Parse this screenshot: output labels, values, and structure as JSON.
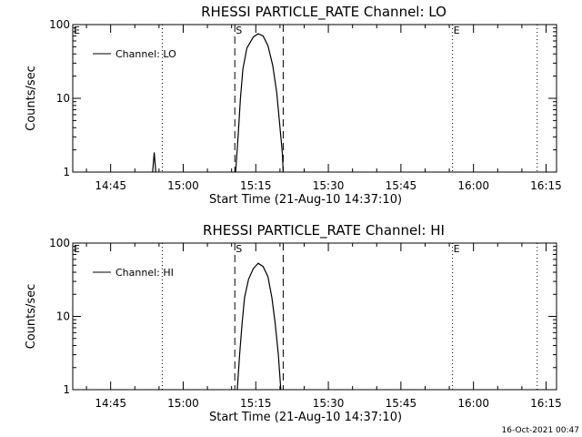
{
  "footer": {
    "timestamp": "16-Oct-2021 00:47"
  },
  "chart_data": [
    {
      "type": "line",
      "title": "RHESSI PARTICLE_RATE Channel: LO",
      "xlabel": "Start Time (21-Aug-10 14:37:10)",
      "ylabel": "Counts/sec",
      "yscale": "log",
      "ylim": [
        1,
        100
      ],
      "xlim": [
        "14:37:10",
        "16:17:10"
      ],
      "x_ticks": [
        "14:45",
        "15:00",
        "15:15",
        "15:30",
        "15:45",
        "16:00",
        "16:15"
      ],
      "y_ticks": [
        "1",
        "10",
        "100"
      ],
      "legend": {
        "position": "top-left",
        "label": "Channel: LO"
      },
      "markers": [
        {
          "label": "E",
          "time": "14:37:10",
          "style": "none"
        },
        {
          "label": "",
          "time": "14:55:40",
          "style": "dotted"
        },
        {
          "label": "S",
          "time": "15:10:40",
          "style": "dashed"
        },
        {
          "label": "",
          "time": "15:20:40",
          "style": "dashed"
        },
        {
          "label": "E",
          "time": "15:55:40",
          "style": "dotted"
        },
        {
          "label": "",
          "time": "16:13:10",
          "style": "dotted"
        }
      ],
      "series": [
        {
          "name": "Channel: LO",
          "segments": [
            [
              [
                "14:53:40",
                1.0
              ],
              [
                "14:54:00",
                1.85
              ],
              [
                "14:54:20",
                1.0
              ]
            ],
            [
              [
                "15:10:50",
                1.0
              ],
              [
                "15:11:20",
                3.0
              ],
              [
                "15:11:50",
                10.0
              ],
              [
                "15:12:20",
                25.0
              ],
              [
                "15:13:10",
                48.0
              ],
              [
                "15:14:30",
                68.0
              ],
              [
                "15:15:30",
                75.0
              ],
              [
                "15:16:30",
                70.0
              ],
              [
                "15:17:30",
                52.0
              ],
              [
                "15:18:30",
                28.0
              ],
              [
                "15:19:20",
                12.0
              ],
              [
                "15:20:00",
                4.0
              ],
              [
                "15:20:30",
                1.8
              ],
              [
                "15:20:40",
                1.0
              ]
            ]
          ]
        }
      ]
    },
    {
      "type": "line",
      "title": "RHESSI PARTICLE_RATE Channel: HI",
      "xlabel": "Start Time (21-Aug-10 14:37:10)",
      "ylabel": "Counts/sec",
      "yscale": "log",
      "ylim": [
        1,
        100
      ],
      "xlim": [
        "14:37:10",
        "16:17:10"
      ],
      "x_ticks": [
        "14:45",
        "15:00",
        "15:15",
        "15:30",
        "15:45",
        "16:00",
        "16:15"
      ],
      "y_ticks": [
        "1",
        "10",
        "100"
      ],
      "legend": {
        "position": "top-left",
        "label": "Channel: HI"
      },
      "markers": [
        {
          "label": "E",
          "time": "14:37:10",
          "style": "none"
        },
        {
          "label": "",
          "time": "14:55:40",
          "style": "dotted"
        },
        {
          "label": "S",
          "time": "15:10:40",
          "style": "dashed"
        },
        {
          "label": "",
          "time": "15:20:40",
          "style": "dashed"
        },
        {
          "label": "E",
          "time": "15:55:40",
          "style": "dotted"
        },
        {
          "label": "",
          "time": "16:13:10",
          "style": "dotted"
        }
      ],
      "series": [
        {
          "name": "Channel: HI",
          "segments": [
            [
              [
                "15:11:10",
                1.0
              ],
              [
                "15:11:40",
                3.0
              ],
              [
                "15:12:10",
                8.0
              ],
              [
                "15:12:40",
                18.0
              ],
              [
                "15:13:30",
                32.0
              ],
              [
                "15:14:30",
                45.0
              ],
              [
                "15:15:30",
                53.0
              ],
              [
                "15:16:30",
                48.0
              ],
              [
                "15:17:30",
                35.0
              ],
              [
                "15:18:20",
                18.0
              ],
              [
                "15:19:00",
                8.0
              ],
              [
                "15:19:40",
                3.0
              ],
              [
                "15:20:10",
                1.0
              ]
            ]
          ]
        }
      ]
    }
  ]
}
